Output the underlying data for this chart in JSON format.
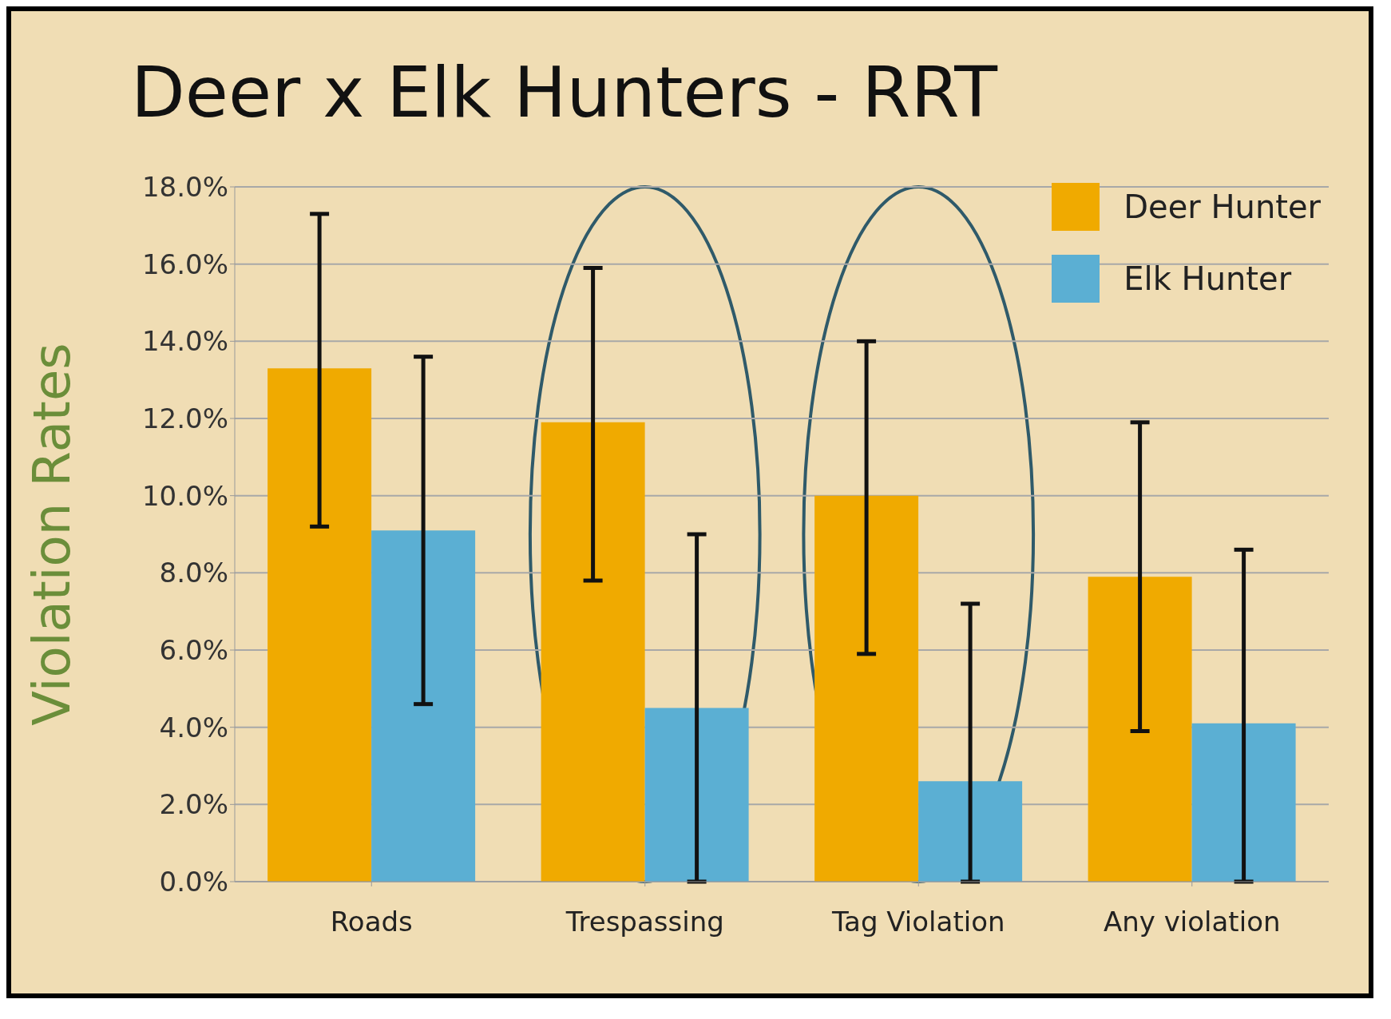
{
  "chart_data": {
    "type": "bar",
    "title": "Deer x Elk Hunters - RRT",
    "ylabel": "Violation Rates",
    "categories": [
      "Roads",
      "Trespassing",
      "Tag Violation",
      "Any violation"
    ],
    "series": [
      {
        "name": "Deer Hunter",
        "color": "#f0aa00",
        "values": [
          13.3,
          11.9,
          10.0,
          7.9
        ],
        "errors": [
          [
            9.2,
            17.3
          ],
          [
            7.8,
            15.9
          ],
          [
            5.9,
            14.0
          ],
          [
            3.9,
            11.9
          ]
        ]
      },
      {
        "name": "Elk Hunter",
        "color": "#5bafd3",
        "values": [
          9.1,
          4.5,
          2.6,
          4.1
        ],
        "errors": [
          [
            4.6,
            13.6
          ],
          [
            0,
            9.0
          ],
          [
            0,
            7.2
          ],
          [
            0,
            8.6
          ]
        ]
      }
    ],
    "ylim": [
      0,
      18
    ],
    "yticks": [
      {
        "value": 0,
        "label": "0.0%"
      },
      {
        "value": 2,
        "label": "2.0%"
      },
      {
        "value": 4,
        "label": "4.0%"
      },
      {
        "value": 6,
        "label": "6.0%"
      },
      {
        "value": 8,
        "label": "8.0%"
      },
      {
        "value": 10,
        "label": "10.0%"
      },
      {
        "value": 12,
        "label": "12.0%"
      },
      {
        "value": 14,
        "label": "14.0%"
      },
      {
        "value": 16,
        "label": "16.0%"
      },
      {
        "value": 18,
        "label": "18.0%"
      }
    ],
    "grid": "y",
    "legend": "top right"
  }
}
